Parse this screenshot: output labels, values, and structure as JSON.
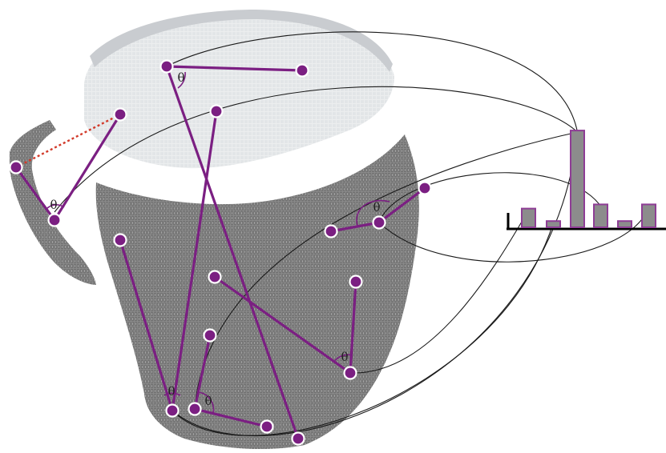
{
  "theta_symbol": "θ",
  "colors": {
    "accent": "#7b1f82",
    "bar_fill": "#8c8c8c",
    "bar_stroke": "#8e3d95",
    "dashed_link": "#d23a2a",
    "cloud_dark": "#7d7d7d",
    "cloud_light": "#e9ebec",
    "curve": "#1a1a1a"
  },
  "histogram": {
    "values": [
      0.18,
      0.06,
      0.93,
      0.22,
      0.06,
      0.22
    ]
  },
  "pairs": [
    {
      "theta": "θ"
    },
    {
      "theta": "θ"
    },
    {
      "theta": "θ"
    },
    {
      "theta": "θ"
    },
    {
      "theta": "θ"
    },
    {
      "theta": "θ"
    }
  ]
}
